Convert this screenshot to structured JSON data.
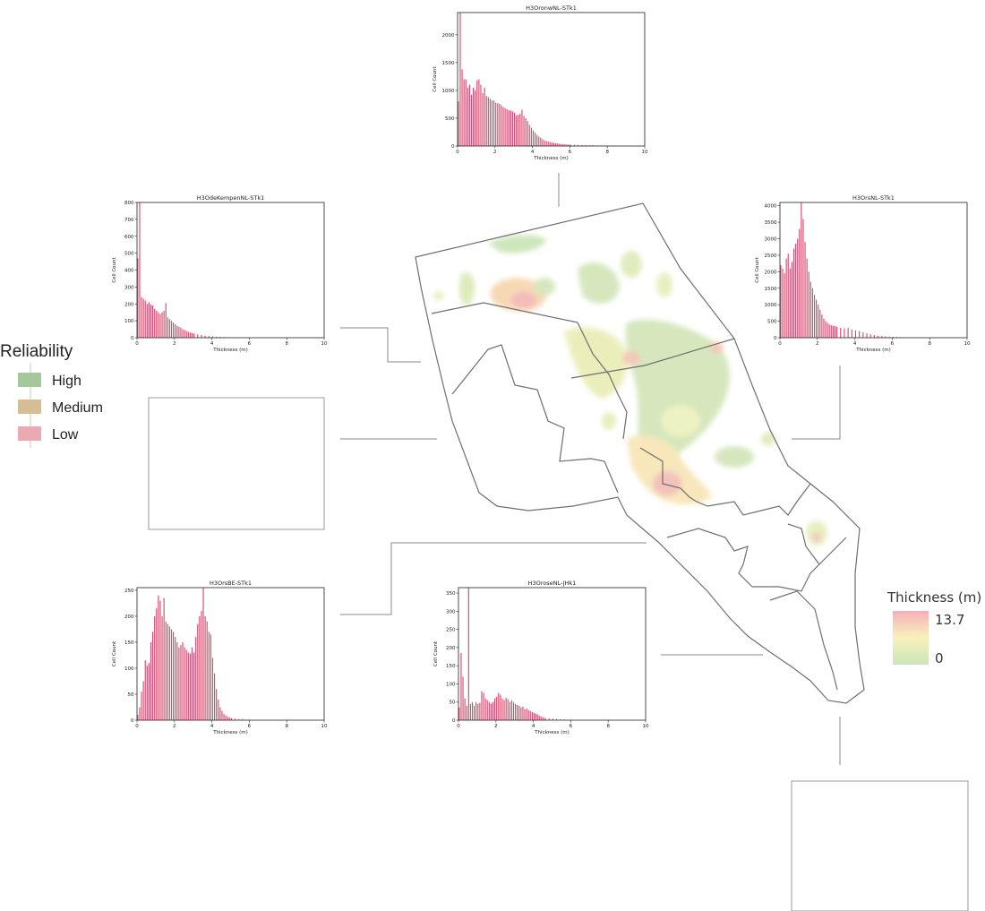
{
  "reliability_legend": {
    "title": "Reliability",
    "items": [
      {
        "label": "High",
        "color": "#a6c79b"
      },
      {
        "label": "Medium",
        "color": "#d6bd94"
      },
      {
        "label": "Low",
        "color": "#eba9b4"
      }
    ]
  },
  "thickness_legend": {
    "title": "Thickness (m)",
    "max_label": "13.7",
    "min_label": "0",
    "colors": [
      "#f4a7b0",
      "#f7f0b6",
      "#c6e2b0"
    ]
  },
  "chart_data": [
    {
      "type": "bar",
      "id": "H3OronwNL-STk1",
      "title": "H3OronwNL-STk1",
      "xlabel": "Thickness (m)",
      "ylabel": "Cell Count",
      "xlim": [
        0,
        10
      ],
      "ylim": [
        0,
        2400
      ],
      "xticks": [
        0,
        2,
        4,
        6,
        8,
        10
      ],
      "yticks": [
        0,
        500,
        1000,
        1500,
        2000
      ],
      "bar_color": "#d94a6e",
      "x": [
        0.0,
        0.1,
        0.2,
        0.3,
        0.4,
        0.5,
        0.6,
        0.7,
        0.8,
        0.9,
        1.0,
        1.1,
        1.2,
        1.3,
        1.4,
        1.5,
        1.6,
        1.7,
        1.8,
        1.9,
        2.0,
        2.1,
        2.2,
        2.3,
        2.4,
        2.5,
        2.6,
        2.7,
        2.8,
        2.9,
        3.0,
        3.1,
        3.2,
        3.3,
        3.4,
        3.5,
        3.6,
        3.7,
        3.8,
        3.9,
        4.0,
        4.1,
        4.2,
        4.3,
        4.4,
        4.5,
        4.6,
        4.7,
        4.8,
        4.9,
        5.0,
        5.1,
        5.2,
        5.3,
        5.4,
        5.5,
        5.6,
        5.7,
        5.8,
        5.9,
        6.0,
        6.2,
        6.4,
        6.6,
        6.8,
        7.0,
        7.2,
        7.4,
        7.6,
        7.8,
        8.0,
        8.2,
        8.4
      ],
      "values": [
        800,
        2400,
        1380,
        1200,
        1200,
        1050,
        1100,
        920,
        1050,
        1000,
        1180,
        1200,
        1100,
        950,
        1050,
        900,
        880,
        850,
        820,
        820,
        780,
        770,
        760,
        730,
        700,
        680,
        660,
        640,
        640,
        620,
        600,
        550,
        560,
        580,
        650,
        540,
        500,
        450,
        380,
        330,
        280,
        240,
        200,
        170,
        150,
        120,
        100,
        90,
        80,
        70,
        60,
        55,
        50,
        45,
        40,
        35,
        32,
        30,
        28,
        26,
        24,
        22,
        20,
        18,
        16,
        14,
        12,
        10,
        9,
        8,
        7,
        6,
        5
      ]
    },
    {
      "type": "bar",
      "id": "H3OdeKempenNL-STk1",
      "title": "H3OdeKempenNL-STk1",
      "xlabel": "Thickness (m)",
      "ylabel": "Cell Count",
      "xlim": [
        0,
        10
      ],
      "ylim": [
        0,
        800
      ],
      "xticks": [
        0,
        2,
        4,
        6,
        8,
        10
      ],
      "yticks": [
        0,
        100,
        200,
        300,
        400,
        500,
        600,
        700,
        800
      ],
      "bar_color": "#d94a6e",
      "x": [
        0.0,
        0.1,
        0.2,
        0.3,
        0.4,
        0.5,
        0.6,
        0.7,
        0.8,
        0.9,
        1.0,
        1.1,
        1.2,
        1.3,
        1.4,
        1.5,
        1.6,
        1.7,
        1.8,
        1.9,
        2.0,
        2.1,
        2.2,
        2.3,
        2.4,
        2.5,
        2.6,
        2.7,
        2.8,
        2.9,
        3.0,
        3.2,
        3.4,
        3.6,
        3.8,
        4.0,
        4.2,
        4.4,
        4.6,
        4.8,
        5.0
      ],
      "values": [
        470,
        800,
        240,
        230,
        220,
        200,
        210,
        195,
        190,
        170,
        160,
        150,
        140,
        150,
        160,
        205,
        120,
        110,
        100,
        90,
        80,
        70,
        65,
        60,
        50,
        45,
        40,
        35,
        30,
        28,
        25,
        20,
        16,
        13,
        10,
        8,
        6,
        5,
        4,
        3,
        2
      ]
    },
    {
      "type": "bar",
      "id": "H3OrsNL-STk1",
      "title": "H3OrsNL-STk1",
      "xlabel": "Thickness (m)",
      "ylabel": "Cell Count",
      "xlim": [
        0,
        10
      ],
      "ylim": [
        0,
        4100
      ],
      "xticks": [
        0,
        2,
        4,
        6,
        8,
        10
      ],
      "yticks": [
        0,
        500,
        1000,
        1500,
        2000,
        2500,
        3000,
        3500,
        4000
      ],
      "bar_color": "#d94a6e",
      "x": [
        0.0,
        0.1,
        0.2,
        0.3,
        0.4,
        0.5,
        0.6,
        0.7,
        0.8,
        0.9,
        1.0,
        1.1,
        1.2,
        1.3,
        1.4,
        1.5,
        1.6,
        1.7,
        1.8,
        1.9,
        2.0,
        2.1,
        2.2,
        2.3,
        2.4,
        2.5,
        2.6,
        2.7,
        2.8,
        2.9,
        3.0,
        3.2,
        3.4,
        3.6,
        3.8,
        4.0,
        4.2,
        4.4,
        4.6,
        4.8,
        5.0,
        5.2,
        5.4,
        5.6,
        5.8,
        6.0,
        6.2,
        6.4
      ],
      "values": [
        2200,
        2100,
        1950,
        2400,
        2550,
        2100,
        2300,
        2700,
        2850,
        3000,
        3300,
        4100,
        3600,
        2900,
        2400,
        2000,
        1700,
        1500,
        1300,
        1150,
        1000,
        850,
        700,
        580,
        500,
        450,
        400,
        380,
        360,
        350,
        330,
        300,
        280,
        300,
        250,
        220,
        200,
        160,
        130,
        100,
        80,
        60,
        50,
        40,
        30,
        25,
        20,
        15
      ]
    },
    {
      "type": "bar",
      "id": "H3OrsBE-STk1",
      "title": "H3OrsBE-STk1",
      "xlabel": "Thickness (m)",
      "ylabel": "Cell Count",
      "xlim": [
        0,
        10
      ],
      "ylim": [
        0,
        255
      ],
      "xticks": [
        0,
        2,
        4,
        6,
        8,
        10
      ],
      "yticks": [
        0,
        50,
        100,
        150,
        200,
        250
      ],
      "bar_color": "#d94a6e",
      "x": [
        0.0,
        0.1,
        0.2,
        0.3,
        0.4,
        0.5,
        0.6,
        0.7,
        0.8,
        0.9,
        1.0,
        1.1,
        1.2,
        1.3,
        1.4,
        1.5,
        1.6,
        1.7,
        1.8,
        1.9,
        2.0,
        2.1,
        2.2,
        2.3,
        2.4,
        2.5,
        2.6,
        2.7,
        2.8,
        2.9,
        3.0,
        3.1,
        3.2,
        3.3,
        3.4,
        3.5,
        3.6,
        3.7,
        3.8,
        3.9,
        4.0,
        4.1,
        4.2,
        4.3,
        4.4,
        4.5,
        4.6,
        4.7,
        4.8,
        4.9,
        5.0,
        5.2,
        5.4,
        5.6,
        5.8,
        6.0
      ],
      "values": [
        10,
        25,
        55,
        75,
        115,
        105,
        110,
        150,
        170,
        200,
        215,
        240,
        230,
        200,
        235,
        190,
        185,
        180,
        175,
        170,
        160,
        150,
        140,
        145,
        150,
        140,
        135,
        130,
        128,
        140,
        130,
        160,
        185,
        200,
        210,
        255,
        200,
        190,
        170,
        165,
        120,
        90,
        60,
        40,
        25,
        18,
        12,
        9,
        7,
        5,
        4,
        3,
        2,
        2,
        1,
        1
      ]
    },
    {
      "type": "bar",
      "id": "H3OroseNL-JHk1",
      "title": "H3OroseNL-JHk1",
      "xlabel": "Thickness (m)",
      "ylabel": "Cell Count",
      "xlim": [
        0,
        10
      ],
      "ylim": [
        0,
        365
      ],
      "xticks": [
        0,
        2,
        4,
        6,
        8,
        10
      ],
      "yticks": [
        0,
        50,
        100,
        150,
        200,
        250,
        300,
        350
      ],
      "bar_color": "#d94a6e",
      "x": [
        0.0,
        0.1,
        0.2,
        0.3,
        0.4,
        0.5,
        0.6,
        0.7,
        0.8,
        0.9,
        1.0,
        1.1,
        1.2,
        1.3,
        1.4,
        1.5,
        1.6,
        1.7,
        1.8,
        1.9,
        2.0,
        2.1,
        2.2,
        2.3,
        2.4,
        2.5,
        2.6,
        2.7,
        2.8,
        2.9,
        3.0,
        3.1,
        3.2,
        3.3,
        3.4,
        3.5,
        3.6,
        3.7,
        3.8,
        3.9,
        4.0,
        4.1,
        4.2,
        4.3,
        4.4,
        4.5,
        4.6,
        4.8,
        5.0,
        5.2,
        5.4,
        5.6,
        5.8,
        6.0
      ],
      "values": [
        35,
        185,
        120,
        60,
        40,
        365,
        45,
        50,
        40,
        50,
        45,
        48,
        80,
        75,
        60,
        55,
        50,
        45,
        50,
        60,
        65,
        75,
        70,
        60,
        55,
        62,
        58,
        50,
        55,
        50,
        45,
        42,
        40,
        35,
        38,
        30,
        32,
        28,
        25,
        22,
        20,
        18,
        15,
        12,
        10,
        8,
        6,
        5,
        4,
        3,
        2,
        2,
        1,
        1
      ]
    }
  ]
}
